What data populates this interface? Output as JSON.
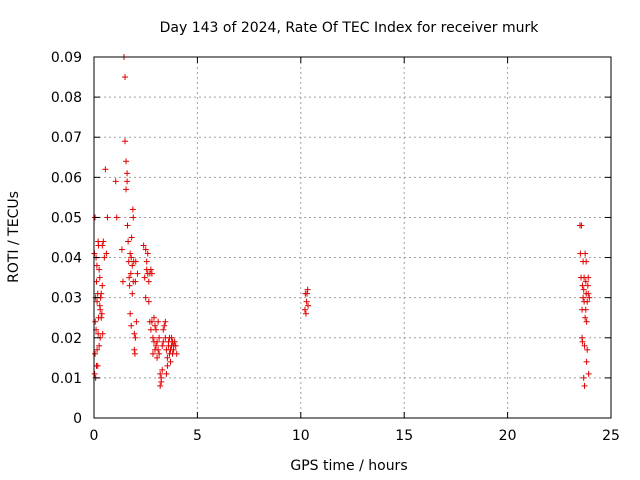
{
  "chart_data": {
    "type": "scatter",
    "title": "Day 143 of 2024, Rate Of TEC Index for receiver murk",
    "xlabel": "GPS time / hours",
    "ylabel": "ROTI / TECUs",
    "xlim": [
      0,
      25
    ],
    "ylim": [
      0,
      0.09
    ],
    "x_ticks": [
      0,
      5,
      10,
      15,
      20,
      25
    ],
    "y_ticks": [
      0,
      0.01,
      0.02,
      0.03,
      0.04,
      0.05,
      0.06,
      0.07,
      0.08,
      0.09
    ],
    "x_tick_labels": [
      "0",
      "5",
      "10",
      "15",
      "20",
      "25"
    ],
    "y_tick_labels": [
      "0",
      "0.01",
      "0.02",
      "0.03",
      "0.04",
      "0.05",
      "0.06",
      "0.07",
      "0.08",
      "0.09"
    ],
    "grid": true,
    "marker": "+",
    "color": "#e00000",
    "series": [
      {
        "x": [
          0.02,
          0.03,
          0.05,
          0.05,
          0.06,
          0.08,
          0.08,
          0.1,
          0.1,
          0.12,
          0.12,
          0.14,
          0.15,
          0.15,
          0.18,
          0.18,
          0.2,
          0.2,
          0.22,
          0.22,
          0.25,
          0.25,
          0.28,
          0.28,
          0.3,
          0.3,
          0.32,
          0.35,
          0.35,
          0.38,
          0.4,
          0.4,
          0.42,
          0.45,
          0.5,
          0.55,
          0.6,
          0.65,
          1.05,
          1.1,
          1.35,
          1.4,
          1.45,
          1.5,
          1.5,
          1.55,
          1.55,
          1.6,
          1.6,
          1.62,
          1.65,
          1.68,
          1.7,
          1.72,
          1.75,
          1.75,
          1.78,
          1.8,
          1.8,
          1.82,
          1.85,
          1.85,
          1.88,
          1.9,
          1.9,
          1.92,
          1.95,
          1.95,
          1.98,
          2.0,
          2.0,
          2.02,
          2.05,
          2.1,
          2.4,
          2.45,
          2.5,
          2.5,
          2.55,
          2.55,
          2.6,
          2.6,
          2.65,
          2.65,
          2.7,
          2.7,
          2.75,
          2.75,
          2.8,
          2.8,
          2.85,
          2.85,
          2.9,
          2.9,
          2.95,
          2.95,
          3.0,
          3.0,
          3.05,
          3.05,
          3.1,
          3.1,
          3.15,
          3.15,
          3.2,
          3.2,
          3.25,
          3.25,
          3.3,
          3.3,
          3.35,
          3.35,
          3.4,
          3.45,
          3.45,
          3.5,
          3.5,
          3.55,
          3.55,
          3.6,
          3.6,
          3.65,
          3.65,
          3.7,
          3.7,
          3.75,
          3.75,
          3.8,
          3.8,
          3.85,
          3.85,
          3.9,
          3.95,
          4.0,
          10.2,
          10.22,
          10.25,
          10.28,
          10.3,
          10.33,
          10.35,
          23.5,
          23.52,
          23.55,
          23.57,
          23.6,
          23.6,
          23.62,
          23.62,
          23.65,
          23.65,
          23.68,
          23.68,
          23.7,
          23.7,
          23.72,
          23.72,
          23.75,
          23.75,
          23.78,
          23.78,
          23.8,
          23.8,
          23.82,
          23.82,
          23.85,
          23.85,
          23.88,
          23.9,
          23.9,
          23.92,
          23.95
        ],
        "y": [
          0.041,
          0.011,
          0.05,
          0.016,
          0.024,
          0.03,
          0.01,
          0.04,
          0.022,
          0.034,
          0.013,
          0.038,
          0.029,
          0.017,
          0.031,
          0.013,
          0.044,
          0.021,
          0.043,
          0.025,
          0.037,
          0.018,
          0.035,
          0.028,
          0.027,
          0.02,
          0.03,
          0.031,
          0.025,
          0.026,
          0.043,
          0.033,
          0.021,
          0.044,
          0.04,
          0.062,
          0.041,
          0.05,
          0.059,
          0.05,
          0.042,
          0.034,
          0.09,
          0.085,
          0.069,
          0.064,
          0.057,
          0.061,
          0.059,
          0.048,
          0.044,
          0.039,
          0.035,
          0.033,
          0.041,
          0.026,
          0.036,
          0.04,
          0.023,
          0.045,
          0.038,
          0.031,
          0.052,
          0.05,
          0.034,
          0.039,
          0.021,
          0.017,
          0.016,
          0.02,
          0.034,
          0.039,
          0.024,
          0.036,
          0.043,
          0.035,
          0.042,
          0.03,
          0.039,
          0.037,
          0.041,
          0.036,
          0.034,
          0.029,
          0.036,
          0.024,
          0.037,
          0.022,
          0.036,
          0.024,
          0.02,
          0.016,
          0.025,
          0.019,
          0.017,
          0.023,
          0.018,
          0.022,
          0.015,
          0.019,
          0.024,
          0.017,
          0.02,
          0.016,
          0.011,
          0.008,
          0.009,
          0.01,
          0.012,
          0.018,
          0.019,
          0.022,
          0.023,
          0.024,
          0.02,
          0.011,
          0.017,
          0.015,
          0.013,
          0.019,
          0.018,
          0.016,
          0.02,
          0.017,
          0.014,
          0.018,
          0.02,
          0.019,
          0.016,
          0.018,
          0.017,
          0.019,
          0.018,
          0.016,
          0.027,
          0.031,
          0.026,
          0.029,
          0.031,
          0.032,
          0.028,
          0.048,
          0.041,
          0.035,
          0.048,
          0.027,
          0.02,
          0.033,
          0.019,
          0.039,
          0.03,
          0.032,
          0.01,
          0.035,
          0.029,
          0.018,
          0.008,
          0.041,
          0.025,
          0.027,
          0.034,
          0.039,
          0.031,
          0.014,
          0.024,
          0.029,
          0.017,
          0.033,
          0.031,
          0.035,
          0.011,
          0.03
        ]
      }
    ]
  }
}
